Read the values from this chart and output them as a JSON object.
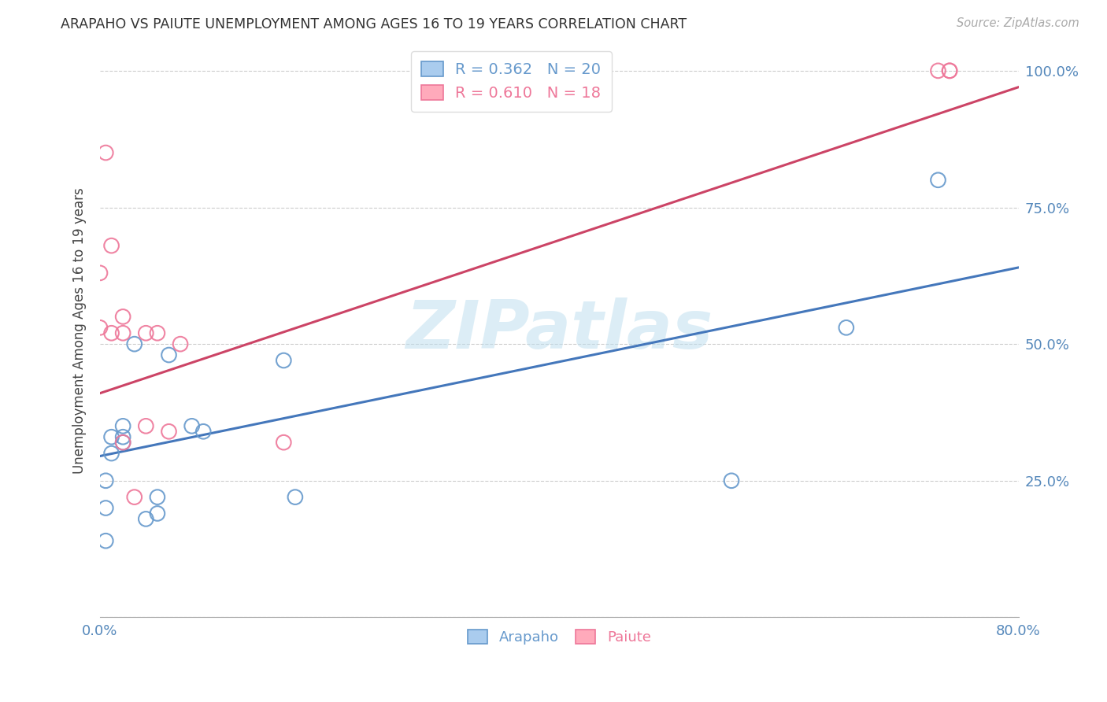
{
  "title": "ARAPAHO VS PAIUTE UNEMPLOYMENT AMONG AGES 16 TO 19 YEARS CORRELATION CHART",
  "source": "Source: ZipAtlas.com",
  "ylabel": "Unemployment Among Ages 16 to 19 years",
  "xlim": [
    0.0,
    0.8
  ],
  "ylim": [
    0.0,
    1.05
  ],
  "xticks": [
    0.0,
    0.1,
    0.2,
    0.3,
    0.4,
    0.5,
    0.6,
    0.7,
    0.8
  ],
  "xticklabels": [
    "0.0%",
    "",
    "",
    "",
    "",
    "",
    "",
    "",
    "80.0%"
  ],
  "yticks": [
    0.0,
    0.25,
    0.5,
    0.75,
    1.0
  ],
  "yticklabels": [
    "",
    "25.0%",
    "50.0%",
    "75.0%",
    "100.0%"
  ],
  "arapaho_R": 0.362,
  "arapaho_N": 20,
  "paiute_R": 0.61,
  "paiute_N": 18,
  "arapaho_color": "#6699cc",
  "paiute_color": "#ee7799",
  "arapaho_line_color": "#4477bb",
  "paiute_line_color": "#cc4466",
  "arapaho_scatter_x": [
    0.005,
    0.005,
    0.005,
    0.01,
    0.01,
    0.02,
    0.02,
    0.02,
    0.03,
    0.04,
    0.05,
    0.05,
    0.06,
    0.08,
    0.09,
    0.16,
    0.17,
    0.55,
    0.65,
    0.73
  ],
  "arapaho_scatter_y": [
    0.14,
    0.2,
    0.25,
    0.3,
    0.33,
    0.32,
    0.33,
    0.35,
    0.5,
    0.18,
    0.19,
    0.22,
    0.48,
    0.35,
    0.34,
    0.47,
    0.22,
    0.25,
    0.53,
    0.8
  ],
  "paiute_scatter_x": [
    0.0,
    0.0,
    0.005,
    0.01,
    0.01,
    0.02,
    0.02,
    0.02,
    0.03,
    0.04,
    0.04,
    0.05,
    0.06,
    0.07,
    0.16,
    0.73,
    0.74,
    0.74
  ],
  "paiute_scatter_y": [
    0.53,
    0.63,
    0.85,
    0.52,
    0.68,
    0.52,
    0.55,
    0.32,
    0.22,
    0.35,
    0.52,
    0.52,
    0.34,
    0.5,
    0.32,
    1.0,
    1.0,
    1.0
  ],
  "arapaho_line_x": [
    0.0,
    0.8
  ],
  "arapaho_line_y": [
    0.295,
    0.64
  ],
  "paiute_line_x": [
    0.0,
    0.8
  ],
  "paiute_line_y": [
    0.41,
    0.97
  ],
  "background_color": "#ffffff",
  "grid_color": "#cccccc",
  "tick_color": "#5588bb",
  "watermark_text": "ZIPatlas",
  "watermark_color": "#bbddee"
}
